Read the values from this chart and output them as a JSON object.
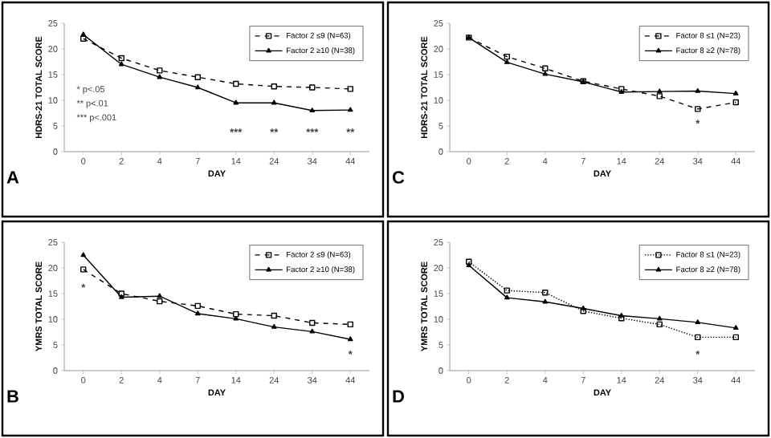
{
  "chart_data": [
    {
      "type": "line",
      "categories": [
        "0",
        "2",
        "4",
        "7",
        "14",
        "24",
        "34",
        "44"
      ],
      "xlabel": "DAY",
      "ylabel": "HDRS-21 TOTAL SCORE",
      "ylim": [
        0,
        25
      ],
      "yticks": [
        0,
        5,
        10,
        15,
        20,
        25
      ],
      "legend": "top right",
      "series": [
        {
          "name": "Factor 2 ≤9 (N=63)",
          "color": "#000000",
          "marker": "square",
          "line_style": "dashed",
          "values": [
            22,
            18.2,
            15.8,
            14.5,
            13.2,
            12.7,
            12.5,
            12.2
          ]
        },
        {
          "name": "Factor 2 ≥10 (N=38)",
          "color": "#000000",
          "marker": "triangle",
          "line_style": "solid",
          "values": [
            22.8,
            17,
            14.5,
            12.5,
            9.5,
            9.5,
            8,
            8.1
          ]
        }
      ],
      "annotations": [
        "A",
        "*      p<.05",
        "**    p<.01",
        "***  p<.001",
        "***",
        "**",
        "***",
        "**"
      ]
    },
    {
      "type": "line",
      "categories": [
        "0",
        "2",
        "4",
        "7",
        "14",
        "24",
        "34",
        "44"
      ],
      "xlabel": "DAY",
      "ylabel": "HDRS-21 TOTAL SCORE",
      "ylim": [
        0,
        25
      ],
      "yticks": [
        0,
        5,
        10,
        15,
        20,
        25
      ],
      "legend": "top right",
      "series": [
        {
          "name": "Factor 8 ≤1 (N=23)",
          "color": "#000000",
          "marker": "square",
          "line_style": "dashed",
          "values": [
            22.2,
            18.5,
            16.2,
            13.7,
            12.2,
            10.8,
            8.3,
            9.6
          ]
        },
        {
          "name": "Factor 8 ≥2 (N=78)",
          "color": "#000000",
          "marker": "triangle",
          "line_style": "solid",
          "values": [
            22.2,
            17.4,
            15.1,
            13.6,
            11.6,
            11.7,
            11.8,
            11.3
          ]
        }
      ],
      "annotations": [
        "C",
        "*"
      ]
    },
    {
      "type": "line",
      "categories": [
        "0",
        "2",
        "4",
        "7",
        "14",
        "24",
        "34",
        "44"
      ],
      "xlabel": "DAY",
      "ylabel": "YMRS TOTAL SCORE",
      "ylim": [
        0,
        25
      ],
      "yticks": [
        0,
        5,
        10,
        15,
        20,
        25
      ],
      "legend": "top right",
      "series": [
        {
          "name": "Factor 2 ≤9 (N=63)",
          "color": "#000000",
          "marker": "square",
          "line_style": "dashed",
          "values": [
            19.7,
            15,
            13.5,
            12.6,
            11,
            10.7,
            9.3,
            9
          ]
        },
        {
          "name": "Factor 2 ≥10 (N=38)",
          "color": "#000000",
          "marker": "triangle",
          "line_style": "solid",
          "values": [
            22.5,
            14.3,
            14.5,
            11.1,
            10.1,
            8.5,
            7.6,
            6.1
          ]
        }
      ],
      "annotations": [
        "B",
        "*",
        "*"
      ]
    },
    {
      "type": "line",
      "categories": [
        "0",
        "2",
        "4",
        "7",
        "14",
        "24",
        "34",
        "44"
      ],
      "xlabel": "DAY",
      "ylabel": "YMRS TOTAL SCORE",
      "ylim": [
        0,
        25
      ],
      "yticks": [
        0,
        5,
        10,
        15,
        20,
        25
      ],
      "legend": "top right",
      "series": [
        {
          "name": "Factor 8 ≤1 (N=23)",
          "color": "#000000",
          "marker": "square",
          "line_style": "dotted",
          "values": [
            21.2,
            15.6,
            15.2,
            11.6,
            10.2,
            9,
            6.5,
            6.5
          ]
        },
        {
          "name": "Factor 8 ≥2 (N=78)",
          "color": "#000000",
          "marker": "triangle",
          "line_style": "solid",
          "values": [
            20.5,
            14.2,
            13.4,
            12.1,
            10.7,
            10.1,
            9.4,
            8.3
          ]
        }
      ],
      "annotations": [
        "D",
        "*"
      ]
    }
  ]
}
